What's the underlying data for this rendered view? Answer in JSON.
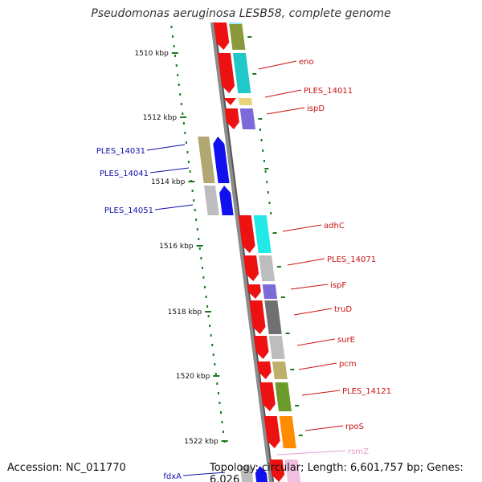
{
  "title": "Pseudomonas aeruginosa LESB58, complete genome",
  "footer": {
    "accession": "Accession: NC_011770",
    "summary": "Topology: circular; Length: 6,601,757 bp; Genes: 6,026"
  },
  "colors": {
    "backbone": "#8c8c8c",
    "ticks": "#1a7a1a",
    "forward_gene": "#ee1111",
    "reverse_gene": "#1111ee",
    "forward_label": "#cc1111",
    "reverse_label": "#1111aa",
    "rna_label": "#e6a0d0"
  },
  "scale_ticks": [
    "1510 kbp",
    "1512 kbp",
    "1514 kbp",
    "1516 kbp",
    "1518 kbp",
    "1520 kbp",
    "1522 kbp"
  ],
  "genes_forward": [
    {
      "label": "eno",
      "category_color": "#20c8c8"
    },
    {
      "label": "PLES_14011",
      "category_color": "#e8d27a"
    },
    {
      "label": "ispD",
      "category_color": "#7b6bd8"
    },
    {
      "label": "adhC",
      "category_color": "#22e8e8"
    },
    {
      "label": "PLES_14071",
      "category_color": "#bdbdbd"
    },
    {
      "label": "ispF",
      "category_color": "#7b6bd8"
    },
    {
      "label": "truD",
      "category_color": "#707070"
    },
    {
      "label": "surE",
      "category_color": "#bdbdbd"
    },
    {
      "label": "pcm",
      "category_color": "#bdb06a"
    },
    {
      "label": "PLES_14121",
      "category_color": "#6b9b2b"
    },
    {
      "label": "rpoS",
      "category_color": "#ff8c00"
    }
  ],
  "genes_reverse": [
    {
      "label": "PLES_14031",
      "category_color": "#b0a870"
    },
    {
      "label": "PLES_14041",
      "category_color": "#bdbdbd"
    },
    {
      "label": "PLES_14051",
      "category_color": "#bdbdbd"
    },
    {
      "label": "fdxA",
      "category_color": "#bdbdbd"
    }
  ],
  "rna_features": [
    {
      "label": "rsmZ"
    }
  ]
}
